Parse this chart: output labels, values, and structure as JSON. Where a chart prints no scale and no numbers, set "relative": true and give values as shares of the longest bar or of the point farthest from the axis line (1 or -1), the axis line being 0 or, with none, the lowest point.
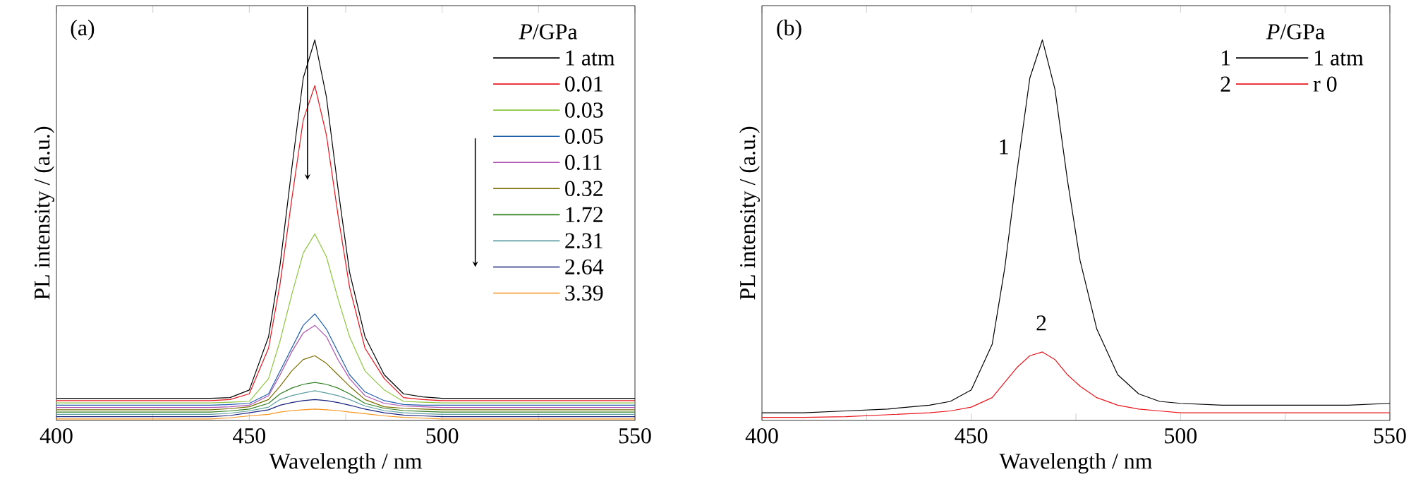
{
  "chart_data": [
    {
      "type": "line",
      "title": "(a)",
      "xlabel": "Wavelength / nm",
      "ylabel": "PL intensity / (a.u.)",
      "legend_title": "*P*/GPa",
      "legend": "top right",
      "relative": true,
      "x": [
        400,
        410,
        420,
        430,
        440,
        445,
        450,
        455,
        458,
        461,
        464,
        467,
        470,
        473,
        476,
        480,
        485,
        490,
        495,
        500,
        510,
        520,
        530,
        540,
        550
      ],
      "xlim": [
        400,
        550
      ],
      "xticks": [
        400,
        {
          "value": 425,
          "label": null
        },
        450,
        {
          "value": 475,
          "label": null
        },
        500,
        {
          "value": 525,
          "label": null
        },
        550
      ],
      "series": [
        {
          "name": "1 atm",
          "color": "#000000",
          "values": [
            0.058,
            0.058,
            0.058,
            0.058,
            0.058,
            0.06,
            0.08,
            0.22,
            0.41,
            0.66,
            0.9,
            1.0,
            0.85,
            0.61,
            0.39,
            0.22,
            0.12,
            0.07,
            0.062,
            0.058,
            0.058,
            0.058,
            0.058,
            0.058,
            0.058
          ]
        },
        {
          "name": "0.01",
          "color": "#e8141c",
          "values": [
            0.052,
            0.052,
            0.052,
            0.052,
            0.052,
            0.055,
            0.07,
            0.19,
            0.36,
            0.58,
            0.79,
            0.88,
            0.75,
            0.54,
            0.35,
            0.19,
            0.11,
            0.06,
            0.055,
            0.052,
            0.052,
            0.052,
            0.052,
            0.052,
            0.052
          ]
        },
        {
          "name": "0.03",
          "color": "#8cc63f",
          "values": [
            0.046,
            0.046,
            0.046,
            0.046,
            0.046,
            0.048,
            0.05,
            0.11,
            0.21,
            0.33,
            0.44,
            0.49,
            0.43,
            0.32,
            0.22,
            0.13,
            0.08,
            0.05,
            0.048,
            0.046,
            0.046,
            0.046,
            0.046,
            0.046,
            0.046
          ]
        },
        {
          "name": "0.05",
          "color": "#1f5fb0",
          "values": [
            0.04,
            0.04,
            0.04,
            0.04,
            0.04,
            0.042,
            0.045,
            0.07,
            0.13,
            0.19,
            0.25,
            0.28,
            0.24,
            0.18,
            0.12,
            0.075,
            0.052,
            0.042,
            0.04,
            0.04,
            0.04,
            0.04,
            0.04,
            0.04,
            0.04
          ]
        },
        {
          "name": "0.11",
          "color": "#b04fb0",
          "values": [
            0.034,
            0.034,
            0.034,
            0.034,
            0.034,
            0.036,
            0.04,
            0.065,
            0.12,
            0.18,
            0.23,
            0.25,
            0.22,
            0.16,
            0.11,
            0.065,
            0.045,
            0.038,
            0.036,
            0.034,
            0.034,
            0.034,
            0.034,
            0.034,
            0.034
          ]
        },
        {
          "name": "0.32",
          "color": "#7a6a00",
          "values": [
            0.028,
            0.028,
            0.028,
            0.028,
            0.028,
            0.031,
            0.036,
            0.055,
            0.09,
            0.13,
            0.16,
            0.17,
            0.15,
            0.12,
            0.09,
            0.055,
            0.036,
            0.032,
            0.03,
            0.028,
            0.028,
            0.028,
            0.028,
            0.028,
            0.028
          ]
        },
        {
          "name": "1.72",
          "color": "#2e7d1e",
          "values": [
            0.022,
            0.022,
            0.022,
            0.022,
            0.022,
            0.025,
            0.03,
            0.045,
            0.07,
            0.085,
            0.095,
            0.1,
            0.095,
            0.085,
            0.07,
            0.045,
            0.032,
            0.026,
            0.024,
            0.022,
            0.022,
            0.022,
            0.022,
            0.022,
            0.022
          ]
        },
        {
          "name": "2.31",
          "color": "#5f9ea0",
          "values": [
            0.016,
            0.016,
            0.016,
            0.016,
            0.016,
            0.019,
            0.025,
            0.035,
            0.055,
            0.065,
            0.072,
            0.078,
            0.072,
            0.065,
            0.055,
            0.038,
            0.026,
            0.02,
            0.018,
            0.016,
            0.016,
            0.016,
            0.016,
            0.016,
            0.016
          ]
        },
        {
          "name": "2.64",
          "color": "#1a237e",
          "values": [
            0.01,
            0.01,
            0.01,
            0.01,
            0.01,
            0.013,
            0.02,
            0.028,
            0.04,
            0.047,
            0.052,
            0.055,
            0.052,
            0.047,
            0.04,
            0.03,
            0.02,
            0.014,
            0.012,
            0.01,
            0.01,
            0.01,
            0.01,
            0.01,
            0.01
          ]
        },
        {
          "name": "3.39",
          "color": "#f7941d",
          "values": [
            0.004,
            0.004,
            0.004,
            0.004,
            0.004,
            0.007,
            0.012,
            0.016,
            0.022,
            0.026,
            0.028,
            0.03,
            0.028,
            0.026,
            0.022,
            0.018,
            0.012,
            0.008,
            0.006,
            0.004,
            0.004,
            0.004,
            0.004,
            0.004,
            0.004
          ]
        }
      ]
    },
    {
      "type": "line",
      "title": "(b)",
      "xlabel": "Wavelength / nm",
      "ylabel": "PL intensity / (a.u.)",
      "legend_title": "*P*/GPa",
      "legend": "top right",
      "relative": true,
      "x": [
        400,
        410,
        420,
        430,
        440,
        445,
        450,
        455,
        458,
        461,
        464,
        467,
        470,
        473,
        476,
        480,
        485,
        490,
        495,
        500,
        510,
        520,
        530,
        540,
        550
      ],
      "xlim": [
        400,
        550
      ],
      "xticks": [
        400,
        {
          "value": 425,
          "label": null
        },
        450,
        {
          "value": 475,
          "label": null
        },
        500,
        {
          "value": 525,
          "label": null
        },
        550
      ],
      "series": [
        {
          "name": "1 atm",
          "color": "#000000",
          "values": [
            0.02,
            0.02,
            0.025,
            0.03,
            0.04,
            0.05,
            0.08,
            0.2,
            0.4,
            0.66,
            0.9,
            1.0,
            0.87,
            0.63,
            0.42,
            0.24,
            0.12,
            0.07,
            0.05,
            0.045,
            0.04,
            0.04,
            0.04,
            0.04,
            0.045
          ]
        },
        {
          "name": "r 0",
          "color": "#e8141c",
          "values": [
            0.008,
            0.008,
            0.01,
            0.015,
            0.02,
            0.025,
            0.035,
            0.06,
            0.1,
            0.14,
            0.17,
            0.18,
            0.16,
            0.12,
            0.09,
            0.06,
            0.04,
            0.03,
            0.025,
            0.02,
            0.02,
            0.02,
            0.02,
            0.02,
            0.02
          ]
        }
      ],
      "annotations": [
        "1",
        "2",
        "1",
        "2"
      ]
    }
  ]
}
